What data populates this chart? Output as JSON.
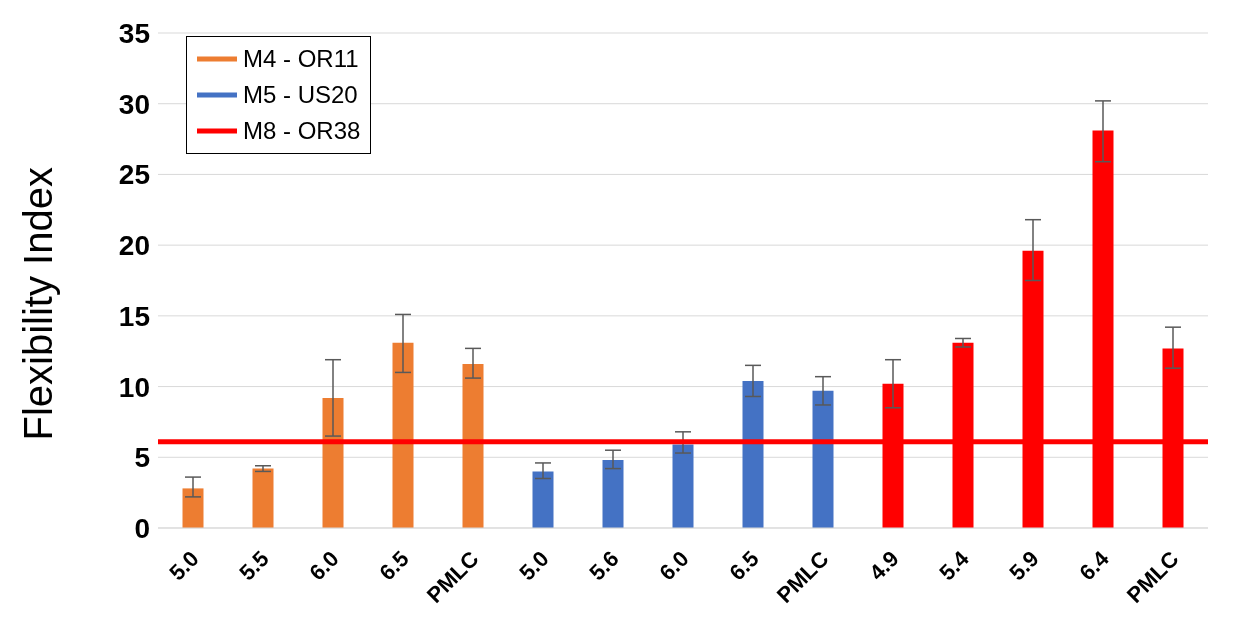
{
  "chart_data": {
    "type": "bar",
    "ylabel": "Flexibility Index",
    "categories": [
      "5.0",
      "5.5",
      "6.0",
      "6.5",
      "PMLC",
      "5.0",
      "5.6",
      "6.0",
      "6.5",
      "PMLC",
      "4.9",
      "5.4",
      "5.9",
      "6.4",
      "PMLC"
    ],
    "series": [
      {
        "name": "M4 - OR11",
        "color": "#ed7d31",
        "values": [
          2.8,
          4.2,
          9.2,
          13.1,
          11.6,
          null,
          null,
          null,
          null,
          null,
          null,
          null,
          null,
          null,
          null
        ],
        "errors": [
          [
            2.2,
            3.6
          ],
          [
            4.0,
            4.4
          ],
          [
            6.5,
            11.9
          ],
          [
            11.0,
            15.1
          ],
          [
            10.6,
            12.7
          ],
          null,
          null,
          null,
          null,
          null,
          null,
          null,
          null,
          null,
          null
        ]
      },
      {
        "name": "M5 - US20",
        "color": "#4472c4",
        "values": [
          null,
          null,
          null,
          null,
          null,
          4.0,
          4.8,
          5.9,
          10.4,
          9.7,
          null,
          null,
          null,
          null,
          null
        ],
        "errors": [
          null,
          null,
          null,
          null,
          null,
          [
            3.5,
            4.6
          ],
          [
            4.2,
            5.5
          ],
          [
            5.3,
            6.8
          ],
          [
            9.3,
            11.5
          ],
          [
            8.7,
            10.7
          ],
          null,
          null,
          null,
          null,
          null
        ]
      },
      {
        "name": "M8 - OR38",
        "color": "#ff0000",
        "values": [
          null,
          null,
          null,
          null,
          null,
          null,
          null,
          null,
          null,
          null,
          10.2,
          13.1,
          19.6,
          28.1,
          12.7
        ],
        "errors": [
          null,
          null,
          null,
          null,
          null,
          null,
          null,
          null,
          null,
          null,
          [
            8.5,
            11.9
          ],
          [
            12.8,
            13.4
          ],
          [
            17.5,
            21.8
          ],
          [
            25.9,
            30.2
          ],
          [
            11.3,
            14.2
          ]
        ]
      }
    ],
    "ref_lines": [
      {
        "axis": "y",
        "value": 6.1,
        "color": "#ff0000"
      }
    ],
    "ylim": [
      0,
      35
    ],
    "yticks": [
      0,
      5,
      10,
      15,
      20,
      25,
      30,
      35
    ],
    "grid": "y",
    "legend": "top left"
  }
}
